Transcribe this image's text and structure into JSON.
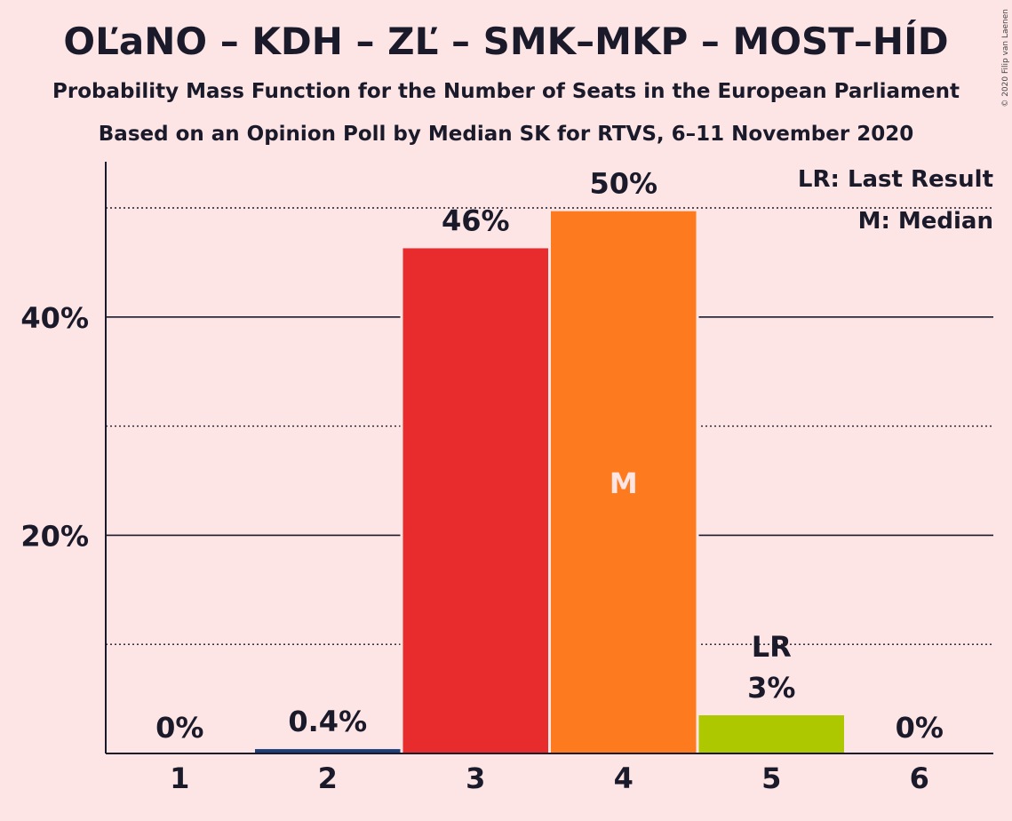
{
  "title": "OĽaNO – KDH – ZĽ – SMK–MKP – MOST–HÍD",
  "subtitle1": "Probability Mass Function for the Number of Seats in the European Parliament",
  "subtitle2": "Based on an Opinion Poll by Median SK for RTVS, 6–11 November 2020",
  "copyright": "© 2020 Filip van Laenen",
  "legend": {
    "last_result": "LR: Last Result",
    "median": "M: Median"
  },
  "colors": {
    "background": "#fde5e6",
    "bar2": "#1d3e78",
    "bar3": "#e82c2e",
    "bar4": "#fe7a1e",
    "bar5": "#aec800"
  },
  "chart_data": {
    "type": "bar",
    "categories": [
      "1",
      "2",
      "3",
      "4",
      "5",
      "6"
    ],
    "values": [
      0,
      0.4,
      46,
      50,
      3,
      0
    ],
    "precise_values": [
      0,
      0.4,
      46.3,
      49.7,
      3.5,
      0
    ],
    "labels": [
      "0%",
      "0.4%",
      "46%",
      "50%",
      "3%",
      "0%"
    ],
    "bar_colors": [
      "#1d3e78",
      "#1d3e78",
      "#e82c2e",
      "#fe7a1e",
      "#aec800",
      "#1d3e78"
    ],
    "yticks": [
      {
        "value": 20,
        "label": "20%"
      },
      {
        "value": 40,
        "label": "40%"
      }
    ],
    "minor_gridlines": [
      10,
      30,
      50
    ],
    "ylim": [
      0,
      54
    ],
    "median_category": "4",
    "median_marker": "M",
    "last_result_category": "5",
    "last_result_marker": "LR"
  }
}
